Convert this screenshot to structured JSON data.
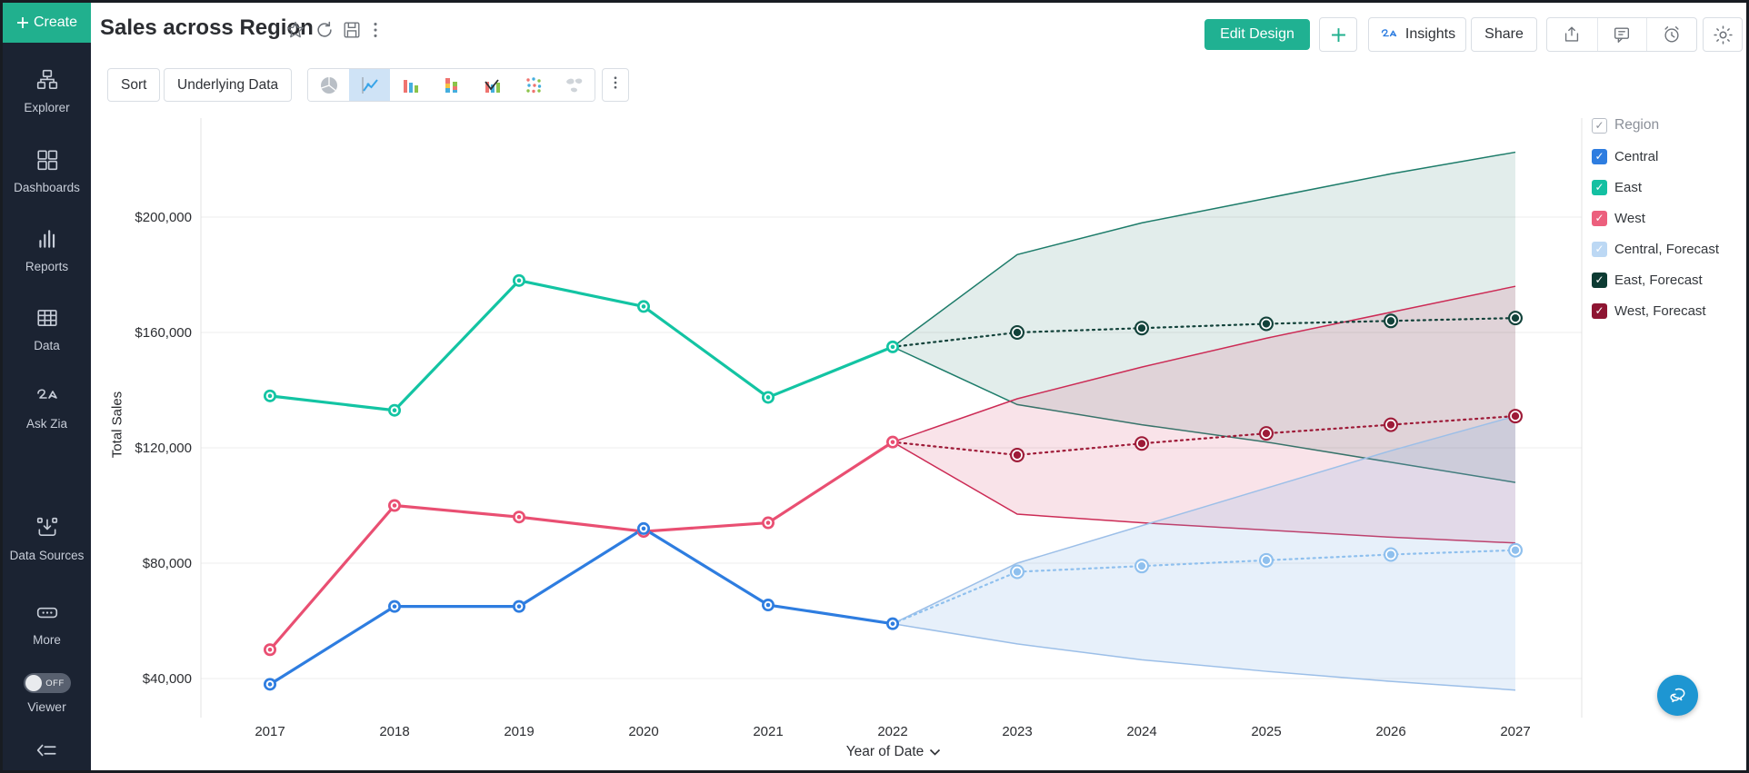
{
  "colors": {
    "accent_teal": "#21b08e",
    "sidebar_bg": "#1b2332",
    "selected_chart_type_bg": "#cfe3f6",
    "fab_blue": "#1e96d2"
  },
  "sidebar": {
    "create_label": "Create",
    "items": [
      {
        "label": "Explorer",
        "icon": "explorer-icon"
      },
      {
        "label": "Dashboards",
        "icon": "dashboards-icon"
      },
      {
        "label": "Reports",
        "icon": "reports-icon"
      },
      {
        "label": "Data",
        "icon": "data-icon"
      },
      {
        "label": "Ask Zia",
        "icon": "zia-icon"
      },
      {
        "label": "Data Sources",
        "icon": "data-sources-icon"
      },
      {
        "label": "More",
        "icon": "more-icon"
      }
    ],
    "viewer": {
      "label": "Viewer",
      "state": "OFF"
    }
  },
  "header": {
    "title": "Sales across Region",
    "title_icons": [
      "star-icon",
      "refresh-icon",
      "save-icon",
      "kebab-icon"
    ],
    "actions": {
      "edit_design": "Edit Design",
      "insights": "Insights",
      "share": "Share",
      "icon_buttons": [
        "export-icon",
        "comment-icon",
        "alarm-icon",
        "gear-icon"
      ]
    }
  },
  "toolbar": {
    "sort": "Sort",
    "underlying_data": "Underlying Data",
    "chart_types": [
      "pie-chart-icon",
      "line-chart-icon",
      "bar-chart-icon",
      "stacked-bar-icon",
      "combo-chart-icon",
      "scatter-icon",
      "map-chart-icon"
    ],
    "selected_chart_type": "line-chart-icon"
  },
  "legend": {
    "title": "Region",
    "items": [
      {
        "label": "Central",
        "color": "#2e7de0",
        "swatch_css": "background:#2e7de0",
        "checked": true
      },
      {
        "label": "East",
        "color": "#14c0a2",
        "swatch_css": "background:#14c0a2",
        "checked": true
      },
      {
        "label": "West",
        "color": "#ec5f7d",
        "swatch_css": "background:#ec5f7d",
        "checked": true
      },
      {
        "label": "Central, Forecast",
        "color": "#bcd8f4",
        "swatch_css": "background:#bcd8f4",
        "checked": true
      },
      {
        "label": "East, Forecast",
        "color": "#0d3b33",
        "swatch_css": "background:#0d3b33",
        "checked": true
      },
      {
        "label": "West, Forecast",
        "color": "#8e1532",
        "swatch_css": "background:#8e1532",
        "checked": true
      }
    ]
  },
  "chart_data": {
    "type": "line",
    "title": "Sales across Region",
    "xlabel": "Year of Date",
    "ylabel": "Total Sales",
    "grid": true,
    "legend_position": "right",
    "x": [
      2017,
      2018,
      2019,
      2020,
      2021,
      2022,
      2023,
      2024,
      2025,
      2026,
      2027
    ],
    "x_labels": [
      "2017",
      "2018",
      "2019",
      "2020",
      "2021",
      "2022",
      "2023",
      "2024",
      "2025",
      "2026",
      "2027"
    ],
    "yticks": [
      40000,
      80000,
      120000,
      160000,
      200000
    ],
    "ytick_labels": [
      "$40,000",
      "$80,000",
      "$120,000",
      "$160,000",
      "$200,000"
    ],
    "ylim": [
      20000,
      235000
    ],
    "series": [
      {
        "name": "Central",
        "role": "history",
        "color": "#2e7de0",
        "x": [
          2017,
          2018,
          2019,
          2020,
          2021,
          2022
        ],
        "values": [
          38000,
          65000,
          65000,
          92000,
          65500,
          59000
        ]
      },
      {
        "name": "East",
        "role": "history",
        "color": "#13c4a3",
        "x": [
          2017,
          2018,
          2019,
          2020,
          2021,
          2022
        ],
        "values": [
          138000,
          133000,
          178000,
          169000,
          137500,
          155000
        ]
      },
      {
        "name": "West",
        "role": "history",
        "color": "#e94f72",
        "x": [
          2017,
          2018,
          2019,
          2020,
          2021,
          2022
        ],
        "values": [
          50000,
          100000,
          96000,
          91000,
          94000,
          122000
        ]
      },
      {
        "name": "Central, Forecast",
        "role": "forecast",
        "color": "#8fc0ee",
        "x": [
          2022,
          2023,
          2024,
          2025,
          2026,
          2027
        ],
        "values": [
          59000,
          77000,
          79000,
          81000,
          83000,
          84500
        ]
      },
      {
        "name": "East, Forecast",
        "role": "forecast",
        "color": "#12423a",
        "x": [
          2022,
          2023,
          2024,
          2025,
          2026,
          2027
        ],
        "values": [
          155000,
          160000,
          161500,
          163000,
          164000,
          165000
        ]
      },
      {
        "name": "West, Forecast",
        "role": "forecast",
        "color": "#9e1b38",
        "x": [
          2022,
          2023,
          2024,
          2025,
          2026,
          2027
        ],
        "values": [
          122000,
          117500,
          121500,
          125000,
          128000,
          131000
        ]
      }
    ],
    "bands": [
      {
        "name": "East, Forecast range",
        "line": "#1d7c6a",
        "fill": "rgba(30,115,100,0.13)",
        "x": [
          2022,
          2023,
          2024,
          2025,
          2026,
          2027
        ],
        "upper": [
          155000,
          187000,
          198000,
          206500,
          215000,
          222500
        ],
        "lower": [
          155000,
          135000,
          128000,
          122000,
          115000,
          108000
        ]
      },
      {
        "name": "West, Forecast range",
        "line": "#cc2b55",
        "fill": "rgba(215,70,110,0.15)",
        "x": [
          2022,
          2023,
          2024,
          2025,
          2026,
          2027
        ],
        "upper": [
          122000,
          137000,
          148000,
          158000,
          167000,
          176000
        ],
        "lower": [
          122000,
          97000,
          94000,
          91500,
          89000,
          87000
        ]
      },
      {
        "name": "Central, Forecast range",
        "line": "#9cbfe8",
        "fill": "rgba(120,170,225,0.18)",
        "x": [
          2022,
          2023,
          2024,
          2025,
          2026,
          2027
        ],
        "upper": [
          59000,
          80000,
          93000,
          106000,
          119000,
          131000
        ],
        "lower": [
          59000,
          52000,
          46500,
          42500,
          39000,
          36000
        ]
      }
    ]
  }
}
